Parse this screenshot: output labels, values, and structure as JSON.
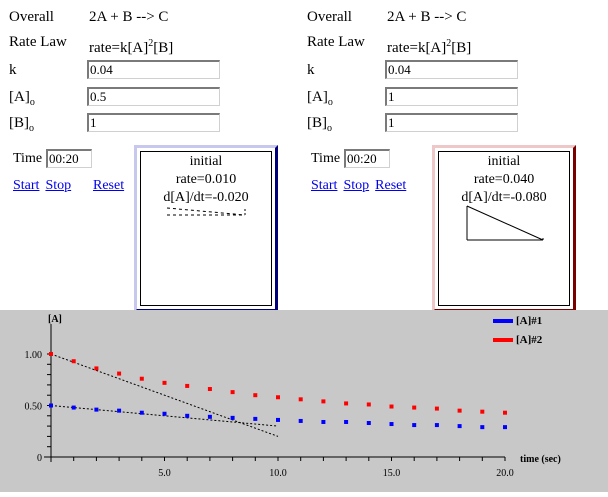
{
  "sim1": {
    "overall_label": "Overall",
    "overall_value": "2A + B --> C",
    "rate_law_label": "Rate Law",
    "rate_law_prefix": "rate=k[A]",
    "rate_law_exp": "2",
    "rate_law_suffix": "[B]",
    "k_label": "k",
    "k_value": "0.04",
    "a0_label": "[A]",
    "a0_sub": "o",
    "a0_value": "0.5",
    "b0_label": "[B]",
    "b0_sub": "o",
    "b0_value": "1",
    "time_label": "Time",
    "time_value": "00:20",
    "start": "Start",
    "stop": "Stop",
    "reset": "Reset",
    "panel_title": "initial",
    "panel_rate": "rate=0.010",
    "panel_deriv": "d[A]/dt=-0.020"
  },
  "sim2": {
    "overall_label": "Overall",
    "overall_value": "2A + B --> C",
    "rate_law_label": "Rate Law",
    "rate_law_prefix": "rate=k[A]",
    "rate_law_exp": "2",
    "rate_law_suffix": "[B]",
    "k_label": "k",
    "k_value": "0.04",
    "a0_label": "[A]",
    "a0_sub": "o",
    "a0_value": "1",
    "b0_label": "[B]",
    "b0_sub": "o",
    "b0_value": "1",
    "time_label": "Time",
    "time_value": "00:20",
    "start": "Start",
    "stop": "Stop",
    "reset": "Reset",
    "panel_title": "initial",
    "panel_rate": "rate=0.040",
    "panel_deriv": "d[A]/dt=-0.080"
  },
  "colors": {
    "series1": "#0000ff",
    "series2": "#ff0000",
    "graph_bg": "#c8c8c8"
  },
  "chart_data": {
    "type": "scatter",
    "ylabel": "[A]",
    "xlabel": "time (sec)",
    "xlim": [
      0,
      20
    ],
    "ylim": [
      0,
      1.1
    ],
    "xticks": [
      "5.0",
      "10.0",
      "15.0",
      "20.0"
    ],
    "yticks": [
      "0",
      "0.50",
      "1.00"
    ],
    "legend_position": "top-right",
    "series": [
      {
        "name": "[A]#1",
        "x": [
          0,
          1,
          2,
          3,
          4,
          5,
          6,
          7,
          8,
          9,
          10,
          11,
          12,
          13,
          14,
          15,
          16,
          17,
          18,
          19,
          20
        ],
        "y": [
          0.5,
          0.48,
          0.46,
          0.45,
          0.43,
          0.42,
          0.4,
          0.39,
          0.38,
          0.37,
          0.36,
          0.35,
          0.34,
          0.34,
          0.33,
          0.32,
          0.31,
          0.31,
          0.3,
          0.29,
          0.29
        ]
      },
      {
        "name": "[A]#2",
        "x": [
          0,
          1,
          2,
          3,
          4,
          5,
          6,
          7,
          8,
          9,
          10,
          11,
          12,
          13,
          14,
          15,
          16,
          17,
          18,
          19,
          20
        ],
        "y": [
          1.0,
          0.93,
          0.86,
          0.81,
          0.76,
          0.72,
          0.69,
          0.66,
          0.63,
          0.6,
          0.58,
          0.56,
          0.54,
          0.52,
          0.51,
          0.49,
          0.48,
          0.47,
          0.45,
          0.44,
          0.43
        ]
      }
    ],
    "tangents": [
      {
        "series": "[A]#1",
        "x": [
          0,
          10
        ],
        "y": [
          0.5,
          0.3
        ]
      },
      {
        "series": "[A]#2",
        "x": [
          0,
          10
        ],
        "y": [
          1.0,
          0.2
        ]
      }
    ]
  }
}
